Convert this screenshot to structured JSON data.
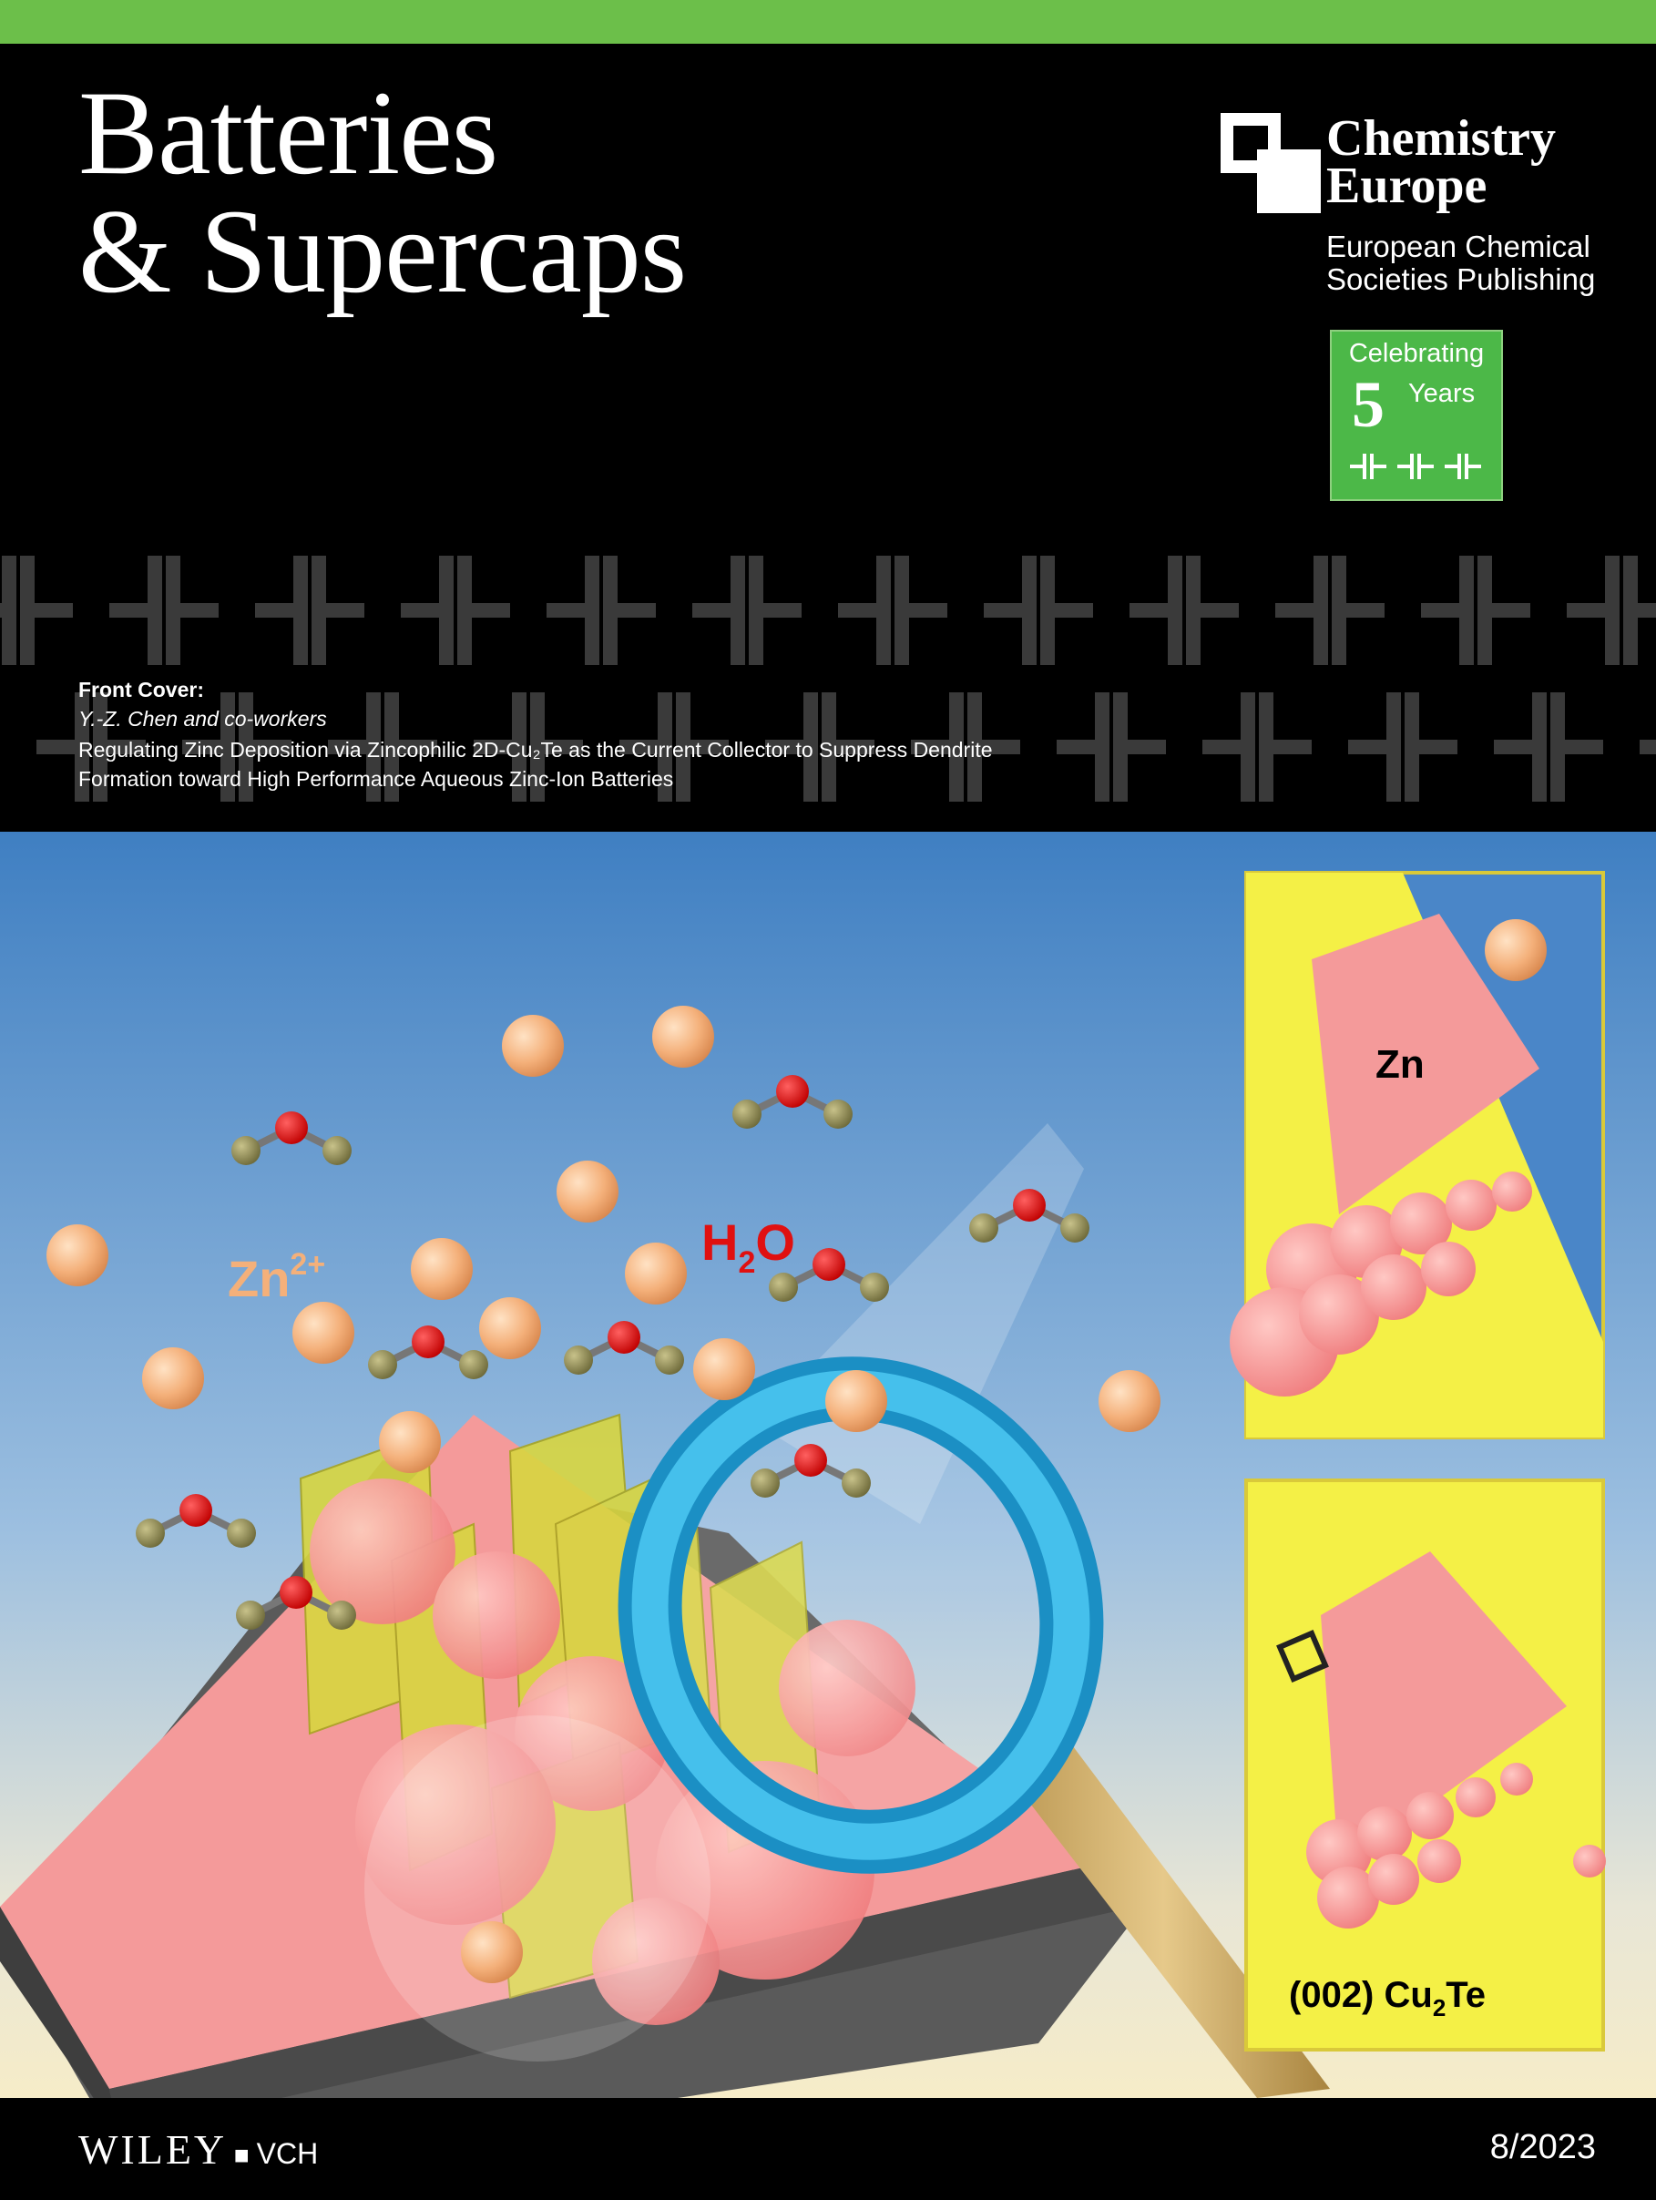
{
  "journal": {
    "title_line1": "Batteries",
    "title_line2": "& Supercaps"
  },
  "publisher": {
    "name_line1": "Chemistry",
    "name_line2": "Europe",
    "sub_line1": "European Chemical",
    "sub_line2": "Societies Publishing"
  },
  "anniversary": {
    "line1": "Celebrating",
    "number": "5",
    "word": "Years"
  },
  "front_cover": {
    "label": "Front Cover:",
    "authors": "Y.-Z. Chen and co-workers",
    "title_line1": "Regulating Zinc Deposition via Zincophilic 2D-Cu₂Te as the Current Collector to Suppress Dendrite",
    "title_line2": "Formation toward High Performance Aqueous Zinc-Ion Batteries"
  },
  "illustration": {
    "zn_ion_label": "Zn",
    "zn_ion_charge": "2+",
    "water_label": "H",
    "water_sub": "2",
    "water_o": "O",
    "inset_top_label": "Zn",
    "inset_bottom_label": "(002) Cu",
    "inset_bottom_sub": "2",
    "inset_bottom_end": "Te"
  },
  "colors": {
    "accent_green": "#6cbf4a",
    "badge_green": "#4cb848",
    "zinc_pink": "#f59a98",
    "ring_blue": "#2aa7d8",
    "inset_yellow": "#f4f046"
  },
  "footer": {
    "publisher_logo": "WILEY",
    "publisher_suffix": "VCH",
    "issue": "8/2023"
  }
}
